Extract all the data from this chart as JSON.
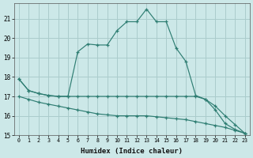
{
  "xlabel": "Humidex (Indice chaleur)",
  "bg_color": "#cce8e8",
  "grid_color": "#aacccc",
  "line_color": "#2e7d72",
  "xlim": [
    -0.5,
    23.5
  ],
  "ylim": [
    15.0,
    21.8
  ],
  "yticks": [
    15,
    16,
    17,
    18,
    19,
    20,
    21
  ],
  "xticks": [
    0,
    1,
    2,
    3,
    4,
    5,
    6,
    7,
    8,
    9,
    10,
    11,
    12,
    13,
    14,
    15,
    16,
    17,
    18,
    19,
    20,
    21,
    22,
    23
  ],
  "line1_x": [
    0,
    1,
    2,
    3,
    4,
    5,
    6,
    7,
    8,
    9,
    10,
    11,
    12,
    13,
    14,
    15,
    16,
    17,
    18,
    19,
    20,
    21,
    22,
    23
  ],
  "line1_y": [
    17.9,
    17.3,
    17.15,
    17.05,
    17.0,
    17.0,
    19.3,
    19.7,
    19.65,
    19.65,
    20.4,
    20.85,
    20.85,
    21.5,
    20.85,
    20.85,
    19.5,
    18.8,
    17.05,
    16.85,
    16.3,
    15.6,
    15.3,
    15.1
  ],
  "line2_x": [
    0,
    1,
    2,
    3,
    4,
    5,
    6,
    7,
    8,
    9,
    10,
    11,
    12,
    13,
    14,
    15,
    16,
    17,
    18,
    19,
    20,
    21,
    22,
    23
  ],
  "line2_y": [
    17.9,
    17.3,
    17.15,
    17.05,
    17.0,
    17.0,
    17.0,
    17.0,
    17.0,
    17.0,
    17.0,
    17.0,
    17.0,
    17.0,
    17.0,
    17.0,
    17.0,
    17.0,
    17.0,
    16.85,
    16.5,
    16.0,
    15.55,
    15.1
  ],
  "line3_x": [
    0,
    1,
    2,
    3,
    4,
    5,
    6,
    7,
    8,
    9,
    10,
    11,
    12,
    13,
    14,
    15,
    16,
    17,
    18,
    19,
    20,
    21,
    22,
    23
  ],
  "line3_y": [
    17.0,
    16.85,
    16.7,
    16.6,
    16.5,
    16.4,
    16.3,
    16.2,
    16.1,
    16.05,
    16.0,
    16.0,
    16.0,
    16.0,
    15.95,
    15.9,
    15.85,
    15.8,
    15.7,
    15.6,
    15.5,
    15.4,
    15.25,
    15.1
  ]
}
